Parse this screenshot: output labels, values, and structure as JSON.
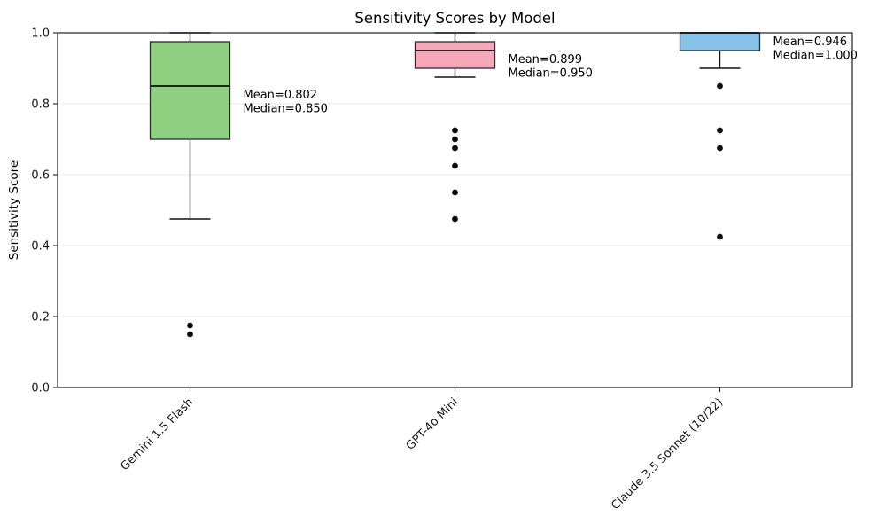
{
  "chart_data": {
    "type": "box",
    "title": "Sensitivity Scores by Model",
    "xlabel": "",
    "ylabel": "Sensitivity Score",
    "ylim": [
      0.0,
      1.0
    ],
    "yticks": [
      "0.0",
      "0.2",
      "0.4",
      "0.6",
      "0.8",
      "1.0"
    ],
    "grid": "horizontal",
    "grid_color": "#e8e8e8",
    "categories": [
      "Gemini 1.5 Flash",
      "GPT-4o Mini",
      "Claude 3.5 Sonnet (10/22)"
    ],
    "series": [
      {
        "category": "Gemini 1.5 Flash",
        "fill_color": "#8fd080",
        "whisker_low": 0.475,
        "q1": 0.7,
        "median": 0.85,
        "q3": 0.975,
        "whisker_high": 1.0,
        "outliers": [
          0.175,
          0.15
        ],
        "mean": 0.802,
        "annotation_lines": [
          "Mean=0.802",
          "Median=0.850"
        ]
      },
      {
        "category": "GPT-4o Mini",
        "fill_color": "#f6a7b9",
        "whisker_low": 0.875,
        "q1": 0.9,
        "median": 0.95,
        "q3": 0.975,
        "whisker_high": 1.0,
        "outliers": [
          0.725,
          0.7,
          0.675,
          0.625,
          0.55,
          0.475
        ],
        "mean": 0.899,
        "annotation_lines": [
          "Mean=0.899",
          "Median=0.950"
        ]
      },
      {
        "category": "Claude 3.5 Sonnet (10/22)",
        "fill_color": "#85c3e9",
        "whisker_low": 0.9,
        "q1": 0.95,
        "median": 1.0,
        "q3": 1.0,
        "whisker_high": 1.0,
        "outliers": [
          0.85,
          0.725,
          0.675,
          0.425
        ],
        "mean": 0.946,
        "annotation_lines": [
          "Mean=0.946",
          "Median=1.000"
        ]
      }
    ]
  }
}
